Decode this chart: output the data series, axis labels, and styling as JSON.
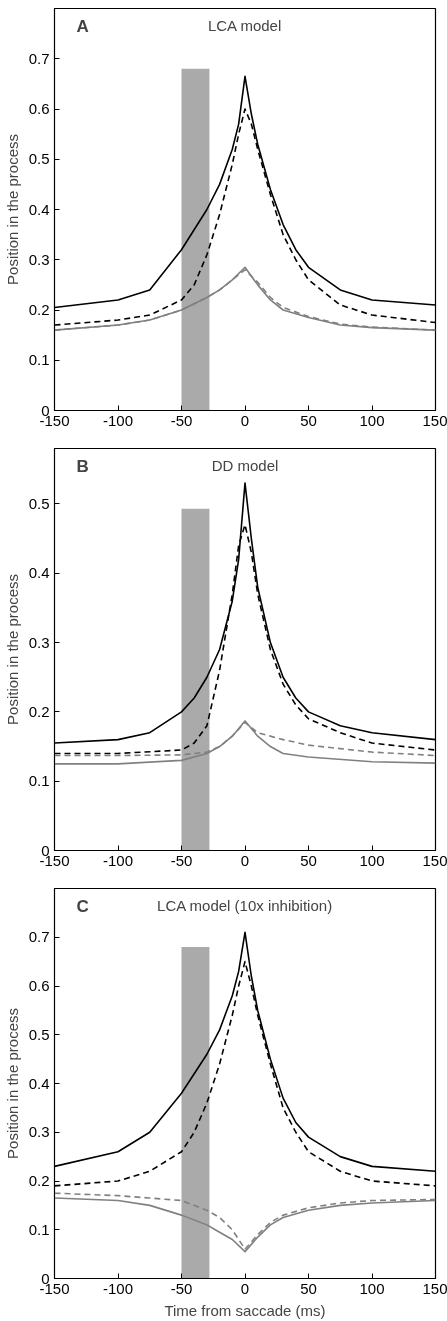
{
  "chart_data": [
    {
      "type": "line",
      "title": "LCA model",
      "annotations": [
        "A"
      ],
      "ylabel": "Position in the process",
      "xlim": [
        -150,
        150
      ],
      "xticks": [
        -150,
        -100,
        -50,
        0,
        50,
        100,
        150
      ],
      "ylim": [
        0,
        0.8
      ],
      "yticks": [
        0,
        0.1,
        0.2,
        0.3,
        0.4,
        0.5,
        0.6,
        0.7
      ],
      "grid": false,
      "bands": [
        {
          "axis": "x",
          "from": -50,
          "to": -28,
          "color": "#aaaaaa"
        }
      ],
      "series": [
        {
          "color": "#000000",
          "line_style": "solid",
          "x": [
            -150,
            -100,
            -75,
            -50,
            -30,
            -20,
            -10,
            -5,
            0,
            5,
            10,
            20,
            30,
            40,
            50,
            75,
            100,
            150
          ],
          "values": [
            0.205,
            0.22,
            0.24,
            0.32,
            0.4,
            0.45,
            0.52,
            0.57,
            0.665,
            0.59,
            0.53,
            0.44,
            0.37,
            0.32,
            0.285,
            0.24,
            0.22,
            0.21
          ]
        },
        {
          "color": "#000000",
          "line_style": "dashed",
          "x": [
            -150,
            -100,
            -75,
            -50,
            -40,
            -30,
            -20,
            -10,
            -5,
            0,
            5,
            10,
            20,
            30,
            40,
            50,
            75,
            100,
            150
          ],
          "values": [
            0.17,
            0.18,
            0.19,
            0.22,
            0.25,
            0.31,
            0.39,
            0.49,
            0.55,
            0.6,
            0.57,
            0.52,
            0.43,
            0.35,
            0.3,
            0.26,
            0.21,
            0.19,
            0.175
          ]
        },
        {
          "color": "#808080",
          "line_style": "solid",
          "x": [
            -150,
            -100,
            -75,
            -50,
            -30,
            -20,
            -10,
            0,
            10,
            20,
            30,
            50,
            75,
            100,
            150
          ],
          "values": [
            0.16,
            0.17,
            0.18,
            0.2,
            0.225,
            0.24,
            0.26,
            0.285,
            0.25,
            0.22,
            0.2,
            0.185,
            0.17,
            0.165,
            0.16
          ]
        },
        {
          "color": "#808080",
          "line_style": "dashed",
          "x": [
            -150,
            -100,
            -75,
            -50,
            -30,
            -20,
            -10,
            0,
            10,
            20,
            30,
            50,
            75,
            100,
            150
          ],
          "values": [
            0.16,
            0.17,
            0.18,
            0.2,
            0.225,
            0.24,
            0.26,
            0.28,
            0.255,
            0.225,
            0.205,
            0.187,
            0.172,
            0.166,
            0.16
          ]
        }
      ]
    },
    {
      "type": "line",
      "title": "DD model",
      "annotations": [
        "B"
      ],
      "ylabel": "Position in the process",
      "xlim": [
        -150,
        150
      ],
      "xticks": [
        -150,
        -100,
        -50,
        0,
        50,
        100,
        150
      ],
      "ylim": [
        0,
        0.58
      ],
      "yticks": [
        0,
        0.1,
        0.2,
        0.3,
        0.4,
        0.5
      ],
      "grid": false,
      "bands": [
        {
          "axis": "x",
          "from": -50,
          "to": -28,
          "color": "#aaaaaa"
        }
      ],
      "series": [
        {
          "color": "#000000",
          "line_style": "solid",
          "x": [
            -150,
            -100,
            -75,
            -50,
            -40,
            -30,
            -20,
            -10,
            -5,
            0,
            5,
            10,
            20,
            30,
            40,
            50,
            75,
            100,
            150
          ],
          "values": [
            0.155,
            0.16,
            0.17,
            0.2,
            0.22,
            0.25,
            0.29,
            0.36,
            0.42,
            0.53,
            0.45,
            0.38,
            0.3,
            0.25,
            0.22,
            0.2,
            0.18,
            0.17,
            0.16
          ]
        },
        {
          "color": "#000000",
          "line_style": "dashed",
          "x": [
            -150,
            -100,
            -50,
            -40,
            -30,
            -20,
            -10,
            -5,
            0,
            5,
            10,
            20,
            30,
            40,
            50,
            75,
            100,
            150
          ],
          "values": [
            0.14,
            0.14,
            0.145,
            0.155,
            0.18,
            0.26,
            0.37,
            0.44,
            0.47,
            0.43,
            0.37,
            0.29,
            0.24,
            0.21,
            0.19,
            0.17,
            0.155,
            0.145
          ]
        },
        {
          "color": "#808080",
          "line_style": "solid",
          "x": [
            -150,
            -100,
            -50,
            -30,
            -20,
            -10,
            0,
            10,
            20,
            30,
            50,
            100,
            150
          ],
          "values": [
            0.125,
            0.125,
            0.13,
            0.14,
            0.15,
            0.165,
            0.187,
            0.165,
            0.15,
            0.14,
            0.135,
            0.128,
            0.126
          ]
        },
        {
          "color": "#808080",
          "line_style": "dashed",
          "x": [
            -150,
            -100,
            -50,
            -30,
            -20,
            -10,
            0,
            10,
            20,
            30,
            50,
            100,
            150
          ],
          "values": [
            0.137,
            0.137,
            0.138,
            0.142,
            0.15,
            0.165,
            0.185,
            0.17,
            0.165,
            0.16,
            0.152,
            0.142,
            0.137
          ]
        }
      ]
    },
    {
      "type": "line",
      "title": "LCA model (10x inhibition)",
      "annotations": [
        "C"
      ],
      "xlabel": "Time from saccade (ms)",
      "ylabel": "Position in the process",
      "xlim": [
        -150,
        150
      ],
      "xticks": [
        -150,
        -100,
        -50,
        0,
        50,
        100,
        150
      ],
      "ylim": [
        0,
        0.8
      ],
      "yticks": [
        0,
        0.1,
        0.2,
        0.3,
        0.4,
        0.5,
        0.6,
        0.7
      ],
      "grid": false,
      "bands": [
        {
          "axis": "x",
          "from": -50,
          "to": -28,
          "color": "#aaaaaa"
        }
      ],
      "series": [
        {
          "color": "#000000",
          "line_style": "solid",
          "x": [
            -150,
            -100,
            -75,
            -50,
            -40,
            -30,
            -20,
            -10,
            -5,
            0,
            5,
            10,
            20,
            30,
            40,
            50,
            75,
            100,
            150
          ],
          "values": [
            0.23,
            0.26,
            0.3,
            0.38,
            0.42,
            0.46,
            0.51,
            0.58,
            0.63,
            0.71,
            0.62,
            0.55,
            0.45,
            0.37,
            0.32,
            0.29,
            0.25,
            0.23,
            0.22
          ]
        },
        {
          "color": "#000000",
          "line_style": "dashed",
          "x": [
            -150,
            -100,
            -75,
            -50,
            -40,
            -30,
            -20,
            -10,
            -5,
            0,
            5,
            10,
            20,
            30,
            40,
            50,
            75,
            100,
            150
          ],
          "values": [
            0.19,
            0.2,
            0.22,
            0.26,
            0.3,
            0.36,
            0.44,
            0.54,
            0.6,
            0.65,
            0.6,
            0.54,
            0.44,
            0.35,
            0.3,
            0.26,
            0.22,
            0.2,
            0.19
          ]
        },
        {
          "color": "#808080",
          "line_style": "solid",
          "x": [
            -150,
            -100,
            -75,
            -50,
            -30,
            -20,
            -10,
            0,
            5,
            10,
            20,
            30,
            50,
            75,
            100,
            150
          ],
          "values": [
            0.165,
            0.16,
            0.15,
            0.13,
            0.11,
            0.095,
            0.08,
            0.055,
            0.07,
            0.085,
            0.11,
            0.125,
            0.14,
            0.15,
            0.155,
            0.16
          ]
        },
        {
          "color": "#808080",
          "line_style": "dashed",
          "x": [
            -150,
            -100,
            -75,
            -50,
            -30,
            -20,
            -10,
            0,
            5,
            10,
            20,
            30,
            50,
            75,
            100,
            150
          ],
          "values": [
            0.175,
            0.17,
            0.165,
            0.16,
            0.14,
            0.125,
            0.1,
            0.06,
            0.075,
            0.09,
            0.115,
            0.13,
            0.145,
            0.155,
            0.16,
            0.162
          ]
        }
      ]
    }
  ]
}
